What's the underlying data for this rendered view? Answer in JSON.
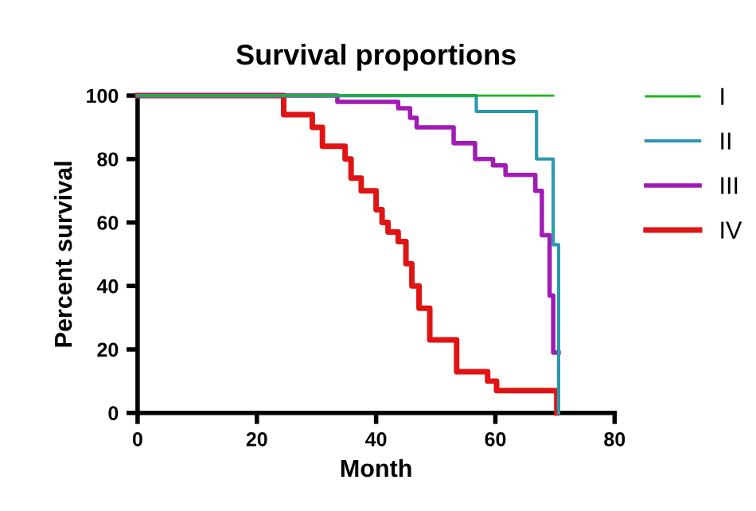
{
  "chart_data": {
    "type": "step",
    "title": "Survival proportions",
    "xlabel": "Month",
    "ylabel": "Percent survival",
    "xlim": [
      0,
      80
    ],
    "xticks": [
      0,
      20,
      40,
      60,
      80
    ],
    "ylim": [
      0,
      100
    ],
    "yticks": [
      0,
      20,
      40,
      60,
      80,
      100
    ],
    "grid": false,
    "legend": "right",
    "line_style": "solid",
    "series": [
      {
        "name": "I",
        "color": "#1fb41f",
        "x": [
          0,
          69.7
        ],
        "values": [
          100,
          100
        ]
      },
      {
        "name": "II",
        "color": "#2a98ad",
        "x": [
          0,
          56.8,
          66.9,
          69.7,
          70.6
        ],
        "values": [
          100,
          95,
          80,
          53,
          0
        ]
      },
      {
        "name": "III",
        "color": "#a01cb4",
        "x": [
          0,
          33.5,
          43.7,
          45.7,
          46.8,
          53,
          56.6,
          59.6,
          61.7,
          66.7,
          67.8,
          69.1,
          69.7,
          70.6
        ],
        "values": [
          100,
          98,
          96,
          93,
          90,
          85,
          80,
          78,
          75,
          70,
          56,
          37,
          19,
          19
        ]
      },
      {
        "name": "IV",
        "color": "#e01414",
        "x": [
          0,
          24.5,
          29.3,
          31,
          34.8,
          35.8,
          37.5,
          40,
          41,
          42,
          43.7,
          45,
          46,
          47.2,
          49,
          53.5,
          58.7,
          60.2,
          70.3
        ],
        "values": [
          100,
          94,
          90,
          84,
          80,
          74,
          70,
          64,
          60,
          57,
          54,
          47,
          40,
          33,
          23,
          13,
          10,
          7,
          0
        ]
      }
    ]
  }
}
